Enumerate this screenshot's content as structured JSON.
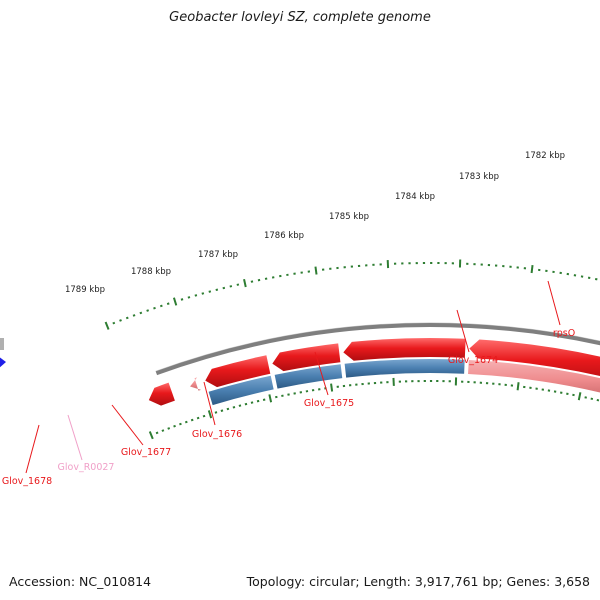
{
  "title": "Geobacter lovleyi SZ, complete genome",
  "footer": {
    "accession": "Accession: NC_010814",
    "topology": "Topology: circular; Length: 3,917,761 bp; Genes: 3,658"
  },
  "colors": {
    "backbone": "#7f7f7f",
    "cds_forward": "#e8191c",
    "cds_reverse": "#4a7fb0",
    "cds_pseudo": "#ee8a8c",
    "rna": "#f0a0c8",
    "tick": "#2e7d32",
    "other_feature": "#1f1fe8"
  },
  "kbp_labels": [
    "1782 kbp",
    "1783 kbp",
    "1784 kbp",
    "1785 kbp",
    "1786 kbp",
    "1787 kbp",
    "1788 kbp",
    "1789 kbp"
  ],
  "gene_labels": [
    {
      "name": "rpsO",
      "kind": "cds_forward"
    },
    {
      "name": "Glov_1674",
      "kind": "cds_forward"
    },
    {
      "name": "Glov_1675",
      "kind": "cds_forward"
    },
    {
      "name": "Glov_1676",
      "kind": "cds_forward"
    },
    {
      "name": "Glov_1677",
      "kind": "cds_forward"
    },
    {
      "name": "Glov_R0027",
      "kind": "rna"
    },
    {
      "name": "Glov_1678",
      "kind": "cds_forward"
    }
  ]
}
